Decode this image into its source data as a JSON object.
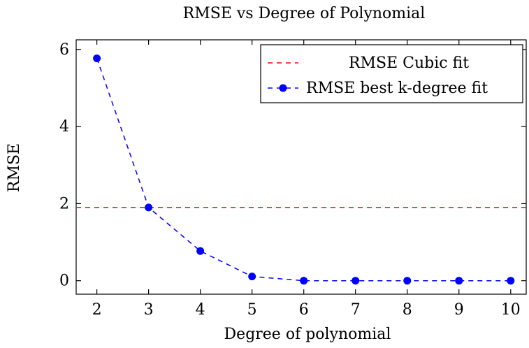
{
  "chart_data": {
    "type": "line",
    "title": "RMSE vs Degree of Polynomial",
    "xlabel": "Degree of polynomial",
    "ylabel": "RMSE",
    "xlim": [
      1.6,
      10.3
    ],
    "ylim": [
      -0.35,
      6.25
    ],
    "xticks": [
      2,
      3,
      4,
      5,
      6,
      7,
      8,
      9,
      10
    ],
    "yticks": [
      0,
      2,
      4,
      6
    ],
    "grid": false,
    "legend_position": "top-right",
    "series": [
      {
        "name": "RMSE Cubic fit",
        "style": "dashed-line",
        "color": "#ff0000",
        "hline": 1.9
      },
      {
        "name": "RMSE best k-degree fit",
        "style": "dashed-line-markers",
        "color": "#0000ff",
        "x": [
          2,
          3,
          4,
          5,
          6,
          7,
          8,
          9,
          10
        ],
        "y": [
          5.77,
          1.9,
          0.77,
          0.11,
          0.0,
          0.0,
          0.0,
          0.0,
          0.0
        ]
      }
    ]
  }
}
